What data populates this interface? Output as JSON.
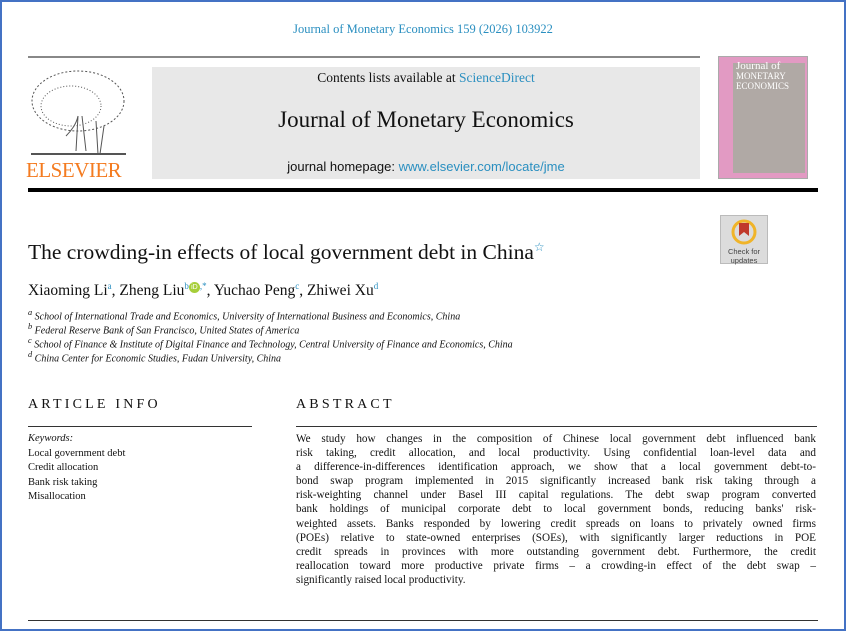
{
  "citation": "Journal of Monetary Economics 159 (2026) 103922",
  "publisher": "ELSEVIER",
  "header": {
    "contents_prefix": "Contents lists available at ",
    "contents_link": "ScienceDirect",
    "journal_name": "Journal of Monetary Economics",
    "homepage_prefix": "journal homepage: ",
    "homepage_link": "www.elsevier.com/locate/jme"
  },
  "cover": {
    "title_line1": "Journal of",
    "title_line2": "MONETARY",
    "title_line3": "ECONOMICS"
  },
  "check_updates": {
    "line1": "Check for",
    "line2": "updates"
  },
  "colors": {
    "link": "#2a8fc0",
    "elsevier_orange": "#f47b20",
    "frame": "#4472c4",
    "orcid": "#a6ce39"
  },
  "article": {
    "title": "The crowding-in effects of local government debt in China",
    "authors": [
      {
        "name": "Xiaoming Li",
        "sup": "a"
      },
      {
        "name": "Zheng Liu",
        "sup": "b",
        "sup2": ",*"
      },
      {
        "name": "Yuchao Peng",
        "sup": "c"
      },
      {
        "name": "Zhiwei Xu",
        "sup": "d"
      }
    ],
    "affiliations": [
      {
        "sup": "a",
        "text": "School of International Trade and Economics, University of International Business and Economics, China"
      },
      {
        "sup": "b",
        "text": "Federal Reserve Bank of San Francisco, United States of America"
      },
      {
        "sup": "c",
        "text": "School of Finance & Institute of Digital Finance and Technology, Central University of Finance and Economics, China"
      },
      {
        "sup": "d",
        "text": "China Center for Economic Studies, Fudan University, China"
      }
    ]
  },
  "article_info": {
    "heading": "ARTICLE INFO",
    "keywords_label": "Keywords:",
    "keywords": [
      "Local government debt",
      "Credit allocation",
      "Bank risk taking",
      "Misallocation"
    ]
  },
  "abstract": {
    "heading": "ABSTRACT",
    "lines": [
      "We study how changes in the composition of Chinese local government debt influenced bank",
      "risk taking, credit allocation, and local productivity. Using confidential loan-level data and",
      "a difference-in-differences identification approach, we show that a local government debt-to-",
      "bond swap program implemented in 2015 significantly increased bank risk taking through a",
      "risk-weighting channel under Basel III capital regulations. The debt swap program converted",
      "bank holdings of municipal corporate debt to local government bonds, reducing banks' risk-",
      "weighted assets. Banks responded by lowering credit spreads on loans to privately owned firms",
      "(POEs) relative to state-owned enterprises (SOEs), with significantly larger reductions in POE",
      "credit spreads in provinces with more outstanding government debt. Furthermore, the credit",
      "reallocation toward more productive private firms – a crowding-in effect of the debt swap –",
      "significantly raised local productivity."
    ]
  }
}
